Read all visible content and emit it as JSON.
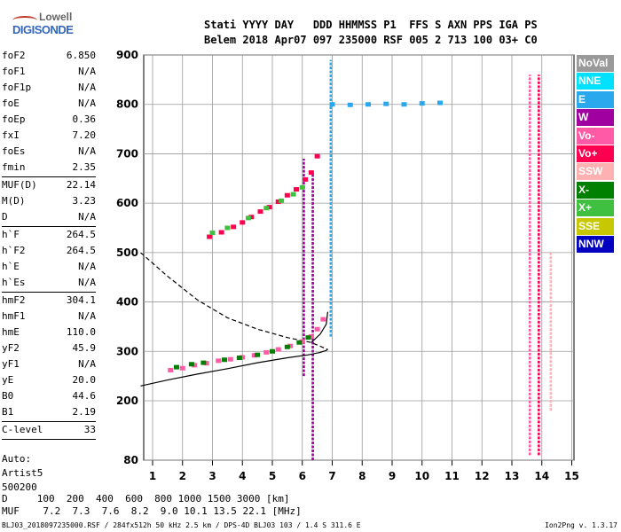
{
  "logo": {
    "line1": "Lowell",
    "line2": "DIGISONDE"
  },
  "header": {
    "line1": "Stati YYYY DAY   DDD HHMMSS P1  FFS S AXN PPS IGA PS",
    "line2": "Belem 2018 Apr07 097 235000 RSF 005 2 713 100 03+ C0"
  },
  "params": [
    {
      "label": "foF2",
      "value": "6.850"
    },
    {
      "label": "foF1",
      "value": "N/A"
    },
    {
      "label": "foF1p",
      "value": "N/A"
    },
    {
      "label": "foE",
      "value": "N/A"
    },
    {
      "label": "foEp",
      "value": "0.36"
    },
    {
      "label": "fxI",
      "value": "7.20"
    },
    {
      "label": "foEs",
      "value": "N/A"
    },
    {
      "label": "fmin",
      "value": "2.35"
    },
    {
      "label": "MUF(D)",
      "value": "22.14"
    },
    {
      "label": "M(D)",
      "value": "3.23"
    },
    {
      "label": "D",
      "value": "N/A"
    },
    {
      "label": "h`F",
      "value": "264.5"
    },
    {
      "label": "h`F2",
      "value": "264.5"
    },
    {
      "label": "h`E",
      "value": "N/A"
    },
    {
      "label": "h`Es",
      "value": "N/A"
    },
    {
      "label": "hmF2",
      "value": "304.1"
    },
    {
      "label": "hmF1",
      "value": "N/A"
    },
    {
      "label": "hmE",
      "value": "110.0"
    },
    {
      "label": "yF2",
      "value": "45.9"
    },
    {
      "label": "yF1",
      "value": "N/A"
    },
    {
      "label": "yE",
      "value": "20.0"
    },
    {
      "label": "B0",
      "value": "44.6"
    },
    {
      "label": "B1",
      "value": "2.19"
    },
    {
      "label": "C-level",
      "value": "33"
    }
  ],
  "auto": {
    "line1": "Auto:",
    "line2": "Artist5",
    "line3": "500200"
  },
  "legend": [
    {
      "label": "NoVal",
      "color": "#9a9a9a"
    },
    {
      "label": "NNE",
      "color": "#00e0ff"
    },
    {
      "label": "E",
      "color": "#2aa8ee"
    },
    {
      "label": "W",
      "color": "#a000a0"
    },
    {
      "label": "Vo-",
      "color": "#ff5aa5"
    },
    {
      "label": "Vo+",
      "color": "#ff0050"
    },
    {
      "label": "SSW",
      "color": "#ffb0b0"
    },
    {
      "label": "X-",
      "color": "#008000"
    },
    {
      "label": "X+",
      "color": "#40c040"
    },
    {
      "label": "SSE",
      "color": "#c8c800"
    },
    {
      "label": "NNW",
      "color": "#0000c0"
    }
  ],
  "muf_table": {
    "d_row": "D     100  200  400  600  800 1000 1500 3000 [km]",
    "muf_row": "MUF    7.2  7.3  7.6  8.2  9.0 10.1 13.5 22.1 [MHz]"
  },
  "footer": "BLJ03_2018097235000.RSF / 284fx512h 50 kHz 2.5 km / DPS-4D BLJ03 103 / 1.4 S 311.6 E",
  "version": "Ion2Png v. 1.3.17",
  "chart_data": {
    "type": "scatter",
    "xlim": [
      0.6,
      15.1
    ],
    "ylim": [
      80,
      900
    ],
    "x_ticks": [
      1,
      2,
      3,
      4,
      5,
      6,
      7,
      8,
      9,
      10,
      11,
      12,
      13,
      14,
      15
    ],
    "x_tick_labels": [
      "1",
      "2",
      "3",
      "4",
      "5",
      "6",
      "7",
      "8",
      "9",
      "10",
      "11",
      "12",
      "13",
      "14",
      "15"
    ],
    "y_ticks": [
      80,
      200,
      300,
      400,
      500,
      600,
      700,
      800,
      900
    ],
    "y_tick_labels": [
      "80",
      "200",
      "300",
      "400",
      "500",
      "600",
      "700",
      "800",
      "900"
    ],
    "grid": true,
    "series": [
      {
        "color": "#ff5aa5",
        "x": [
          1.6,
          2.0,
          2.4,
          2.8,
          3.2,
          3.6,
          4.0,
          4.4,
          4.8,
          5.2,
          5.6,
          6.0,
          6.3,
          6.5,
          6.7
        ],
        "y": [
          262,
          266,
          272,
          276,
          281,
          284,
          288,
          292,
          298,
          304,
          311,
          320,
          330,
          345,
          365
        ]
      },
      {
        "color": "#008000",
        "x": [
          1.8,
          2.3,
          2.7,
          3.4,
          3.9,
          4.5,
          5.0,
          5.5,
          5.9,
          6.2
        ],
        "y": [
          268,
          274,
          277,
          283,
          287,
          293,
          300,
          309,
          318,
          328
        ]
      },
      {
        "color": "#ff0050",
        "x": [
          2.9,
          3.3,
          3.7,
          4.0,
          4.3,
          4.6,
          4.9,
          5.2,
          5.5,
          5.8,
          6.1,
          6.3,
          6.5
        ],
        "y": [
          532,
          541,
          552,
          561,
          572,
          583,
          592,
          603,
          616,
          628,
          648,
          662,
          695
        ]
      },
      {
        "color": "#40c040",
        "x": [
          3.0,
          3.5,
          4.2,
          4.8,
          5.3,
          5.7,
          6.0
        ],
        "y": [
          540,
          550,
          570,
          590,
          605,
          618,
          632
        ]
      },
      {
        "color": "#2aa8ee",
        "x": [
          7.0,
          7.6,
          8.2,
          8.8,
          9.4,
          10.0,
          10.6
        ],
        "y": [
          800,
          799,
          800,
          801,
          800,
          802,
          803
        ]
      }
    ],
    "curves": [
      {
        "style": "solid",
        "x": [
          0.6,
          1.5,
          2.5,
          3.5,
          4.5,
          5.5,
          6.2,
          6.6,
          6.8,
          6.85
        ],
        "y": [
          230,
          242,
          254,
          265,
          277,
          287,
          293,
          298,
          302,
          304
        ]
      },
      {
        "style": "solid",
        "x": [
          6.3,
          6.6,
          6.8,
          6.85
        ],
        "y": [
          318,
          335,
          355,
          380
        ]
      },
      {
        "style": "dashed",
        "x": [
          0.6,
          1.5,
          2.5,
          3.5,
          4.5,
          5.5,
          6.3,
          6.85
        ],
        "y": [
          500,
          452,
          404,
          368,
          345,
          328,
          318,
          304
        ]
      }
    ],
    "vertical_bands": [
      {
        "color": "#a000a0",
        "x": 6.05,
        "y": [
          250,
          690
        ]
      },
      {
        "color": "#a000a0",
        "x": 6.35,
        "y": [
          80,
          660
        ]
      },
      {
        "color": "#2aa8ee",
        "x": 6.95,
        "y": [
          330,
          890
        ]
      },
      {
        "color": "#ff5aa5",
        "x": 13.6,
        "y": [
          90,
          860
        ]
      },
      {
        "color": "#ff0050",
        "x": 13.9,
        "y": [
          90,
          860
        ]
      },
      {
        "color": "#ffb0b0",
        "x": 14.3,
        "y": [
          180,
          500
        ]
      }
    ]
  }
}
